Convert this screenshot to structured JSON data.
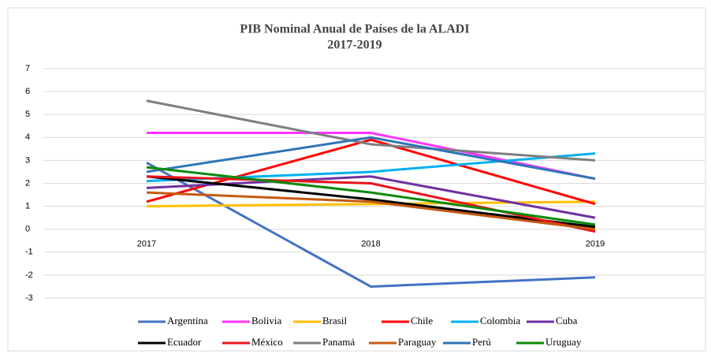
{
  "chart_data": {
    "type": "line",
    "title": "PIB Nominal Anual de Países de la ALADI",
    "subtitle": "2017-2019",
    "categories": [
      "2017",
      "2018",
      "2019"
    ],
    "series": [
      {
        "name": "Argentina",
        "color": "#4472c4",
        "values": [
          2.9,
          -2.5,
          -2.1
        ]
      },
      {
        "name": "Bolivia",
        "color": "#ff33ff",
        "values": [
          4.2,
          4.2,
          2.2
        ]
      },
      {
        "name": "Brasil",
        "color": "#ffc000",
        "values": [
          1.0,
          1.1,
          1.2
        ]
      },
      {
        "name": "Chile",
        "color": "#ff0000",
        "values": [
          1.2,
          3.9,
          1.1
        ]
      },
      {
        "name": "Colombia",
        "color": "#00b0f0",
        "values": [
          2.1,
          2.5,
          3.3
        ]
      },
      {
        "name": "Cuba",
        "color": "#7030a0",
        "values": [
          1.8,
          2.3,
          0.5
        ]
      },
      {
        "name": "Ecuador",
        "color": "#000000",
        "values": [
          2.3,
          1.3,
          0.1
        ]
      },
      {
        "name": "México",
        "color": "#e8141b",
        "values": [
          2.3,
          2.0,
          -0.1
        ]
      },
      {
        "name": "Panamá",
        "color": "#7f7f7f",
        "values": [
          5.6,
          3.7,
          3.0
        ]
      },
      {
        "name": "Paraguay",
        "color": "#c55a11",
        "values": [
          1.6,
          1.2,
          0.0
        ]
      },
      {
        "name": "Perú",
        "color": "#2e75b6",
        "values": [
          2.5,
          4.0,
          2.2
        ]
      },
      {
        "name": "Uruguay",
        "color": "#0a8a0a",
        "values": [
          2.7,
          1.6,
          0.2
        ]
      }
    ],
    "ylim": [
      -3,
      7
    ],
    "yticks": [
      -3,
      -2,
      -1,
      0,
      1,
      2,
      3,
      4,
      5,
      6,
      7
    ],
    "grid": true,
    "legend": "bottom"
  }
}
